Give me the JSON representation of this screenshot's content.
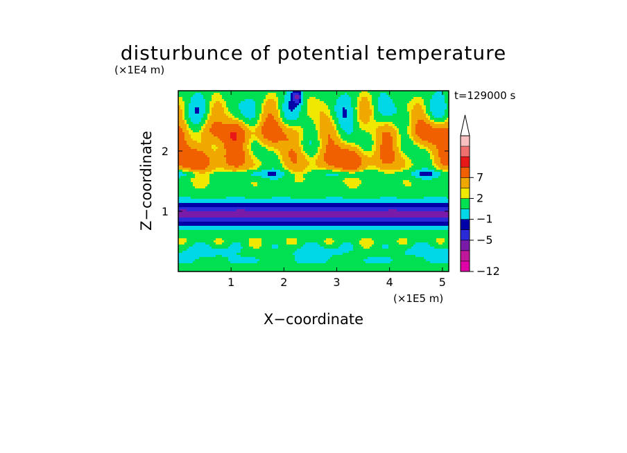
{
  "chart_data": {
    "type": "heatmap",
    "title": "disturbunce of potential temperature",
    "time_label": "t=129000 s",
    "xlabel": "X−coordinate",
    "ylabel": "Z−coordinate",
    "x_unit": "(×1E5 m)",
    "y_unit": "(×1E4 m)",
    "xlim": [
      0,
      5.12
    ],
    "ylim": [
      0,
      3.0
    ],
    "x_ticks": [
      {
        "value": 1,
        "label": "1"
      },
      {
        "value": 2,
        "label": "2"
      },
      {
        "value": 3,
        "label": "3"
      },
      {
        "value": 4,
        "label": "4"
      },
      {
        "value": 5,
        "label": "5"
      }
    ],
    "y_ticks": [
      {
        "value": 1,
        "label": "1"
      },
      {
        "value": 2,
        "label": "2"
      }
    ],
    "colorbar": {
      "labels": [
        {
          "level": 9,
          "text": "7"
        },
        {
          "level": 7,
          "text": "2"
        },
        {
          "level": 5,
          "text": "−1"
        },
        {
          "level": 3,
          "text": "−5"
        },
        {
          "level": 0,
          "text": "−12"
        }
      ],
      "colors": [
        "#e000a8",
        "#c0189a",
        "#7a1aa8",
        "#2a2ad8",
        "#0000a8",
        "#00d8e8",
        "#00e050",
        "#f0e800",
        "#f0a800",
        "#f06000",
        "#e81818",
        "#f07070",
        "#f8c0c0"
      ],
      "extend": "max"
    },
    "grid": false,
    "legend": "colorbar-right"
  }
}
